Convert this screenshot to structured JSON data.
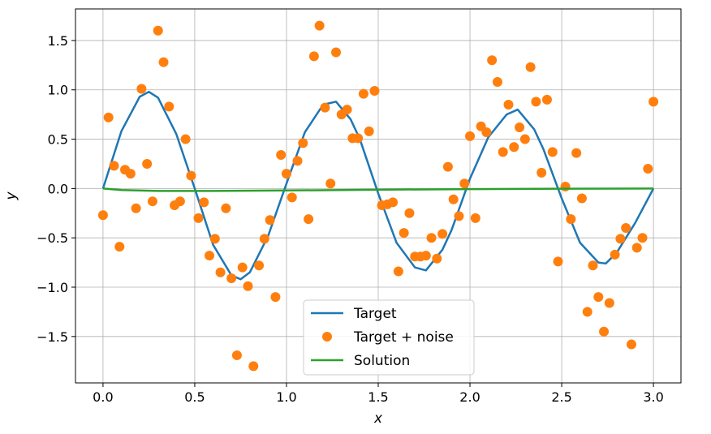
{
  "chart_data": {
    "type": "line",
    "xlabel": "x",
    "ylabel": "y",
    "xlim": [
      -0.15,
      3.15
    ],
    "ylim": [
      -1.97,
      1.82
    ],
    "xticks": [
      0.0,
      0.5,
      1.0,
      1.5,
      2.0,
      2.5,
      3.0
    ],
    "xtick_labels": [
      "0.0",
      "0.5",
      "1.0",
      "1.5",
      "2.0",
      "2.5",
      "3.0"
    ],
    "yticks": [
      1.5,
      1.0,
      0.5,
      0.0,
      -0.5,
      -1.0,
      -1.5
    ],
    "ytick_labels": [
      "1.5",
      "1.0",
      "0.5",
      "0.0",
      "−0.5",
      "−1.0",
      "−1.5"
    ],
    "grid": true,
    "legend": "lower-center",
    "series": [
      {
        "name": "Target",
        "kind": "line",
        "color": "#1f77b4",
        "x": [
          0.0,
          0.1,
          0.2,
          0.25,
          0.3,
          0.4,
          0.5,
          0.6,
          0.7,
          0.75,
          0.8,
          0.9,
          1.0,
          1.1,
          1.2,
          1.27,
          1.35,
          1.4,
          1.5,
          1.6,
          1.7,
          1.76,
          1.85,
          1.9,
          2.0,
          2.1,
          2.2,
          2.26,
          2.35,
          2.4,
          2.5,
          2.6,
          2.7,
          2.74,
          2.8,
          2.9,
          3.0
        ],
        "y": [
          0.0,
          0.58,
          0.93,
          0.98,
          0.92,
          0.55,
          0.0,
          -0.57,
          -0.88,
          -0.92,
          -0.85,
          -0.48,
          0.05,
          0.57,
          0.85,
          0.88,
          0.7,
          0.5,
          -0.05,
          -0.55,
          -0.8,
          -0.83,
          -0.62,
          -0.42,
          0.1,
          0.52,
          0.75,
          0.8,
          0.6,
          0.4,
          -0.1,
          -0.55,
          -0.75,
          -0.76,
          -0.65,
          -0.35,
          0.0
        ]
      },
      {
        "name": "Target + noise",
        "kind": "scatter",
        "color": "#ff7f0e",
        "x": [
          0.0,
          0.03,
          0.06,
          0.09,
          0.12,
          0.15,
          0.18,
          0.21,
          0.24,
          0.27,
          0.3,
          0.33,
          0.36,
          0.39,
          0.42,
          0.45,
          0.48,
          0.52,
          0.55,
          0.58,
          0.61,
          0.64,
          0.67,
          0.7,
          0.73,
          0.76,
          0.79,
          0.82,
          0.85,
          0.88,
          0.91,
          0.94,
          0.97,
          1.0,
          1.03,
          1.06,
          1.09,
          1.12,
          1.15,
          1.18,
          1.21,
          1.24,
          1.27,
          1.3,
          1.33,
          1.36,
          1.39,
          1.42,
          1.45,
          1.48,
          1.52,
          1.55,
          1.58,
          1.61,
          1.64,
          1.67,
          1.7,
          1.73,
          1.76,
          1.79,
          1.82,
          1.85,
          1.88,
          1.91,
          1.94,
          1.97,
          2.0,
          2.03,
          2.06,
          2.09,
          2.12,
          2.15,
          2.18,
          2.21,
          2.24,
          2.27,
          2.3,
          2.33,
          2.36,
          2.39,
          2.42,
          2.45,
          2.48,
          2.52,
          2.55,
          2.58,
          2.61,
          2.64,
          2.67,
          2.7,
          2.73,
          2.76,
          2.79,
          2.82,
          2.85,
          2.88,
          2.91,
          2.94,
          2.97,
          3.0
        ],
        "y": [
          -0.27,
          0.72,
          0.23,
          -0.59,
          0.19,
          0.15,
          -0.2,
          1.01,
          0.25,
          -0.13,
          1.6,
          1.28,
          0.83,
          -0.17,
          -0.13,
          0.5,
          0.13,
          -0.3,
          -0.14,
          -0.68,
          -0.51,
          -0.85,
          -0.2,
          -0.91,
          -1.69,
          -0.8,
          -0.99,
          -1.8,
          -0.78,
          -0.51,
          -0.32,
          -1.1,
          0.34,
          0.15,
          -0.09,
          0.28,
          0.46,
          -0.31,
          1.34,
          1.65,
          0.82,
          0.05,
          1.38,
          0.75,
          0.8,
          0.51,
          0.51,
          0.96,
          0.58,
          0.99,
          -0.17,
          -0.16,
          -0.14,
          -0.84,
          -0.45,
          -0.25,
          -0.69,
          -0.69,
          -0.68,
          -0.5,
          -0.71,
          -0.46,
          0.22,
          -0.11,
          -0.28,
          0.05,
          0.53,
          -0.3,
          0.63,
          0.57,
          1.3,
          1.08,
          0.37,
          0.85,
          0.42,
          0.62,
          0.5,
          1.23,
          0.88,
          0.16,
          0.9,
          0.37,
          -0.74,
          0.02,
          -0.31,
          0.36,
          -0.1,
          -1.25,
          -0.78,
          -1.1,
          -1.45,
          -1.16,
          -0.67,
          -0.51,
          -0.4,
          -1.58,
          -0.6,
          -0.5,
          0.2,
          0.88
        ]
      },
      {
        "name": "Solution",
        "kind": "line",
        "color": "#2ca02c",
        "x": [
          0.0,
          0.1,
          0.3,
          0.6,
          1.0,
          1.5,
          2.0,
          2.5,
          3.0
        ],
        "y": [
          0.0,
          -0.015,
          -0.025,
          -0.025,
          -0.02,
          -0.012,
          -0.006,
          -0.002,
          0.0
        ]
      }
    ]
  }
}
